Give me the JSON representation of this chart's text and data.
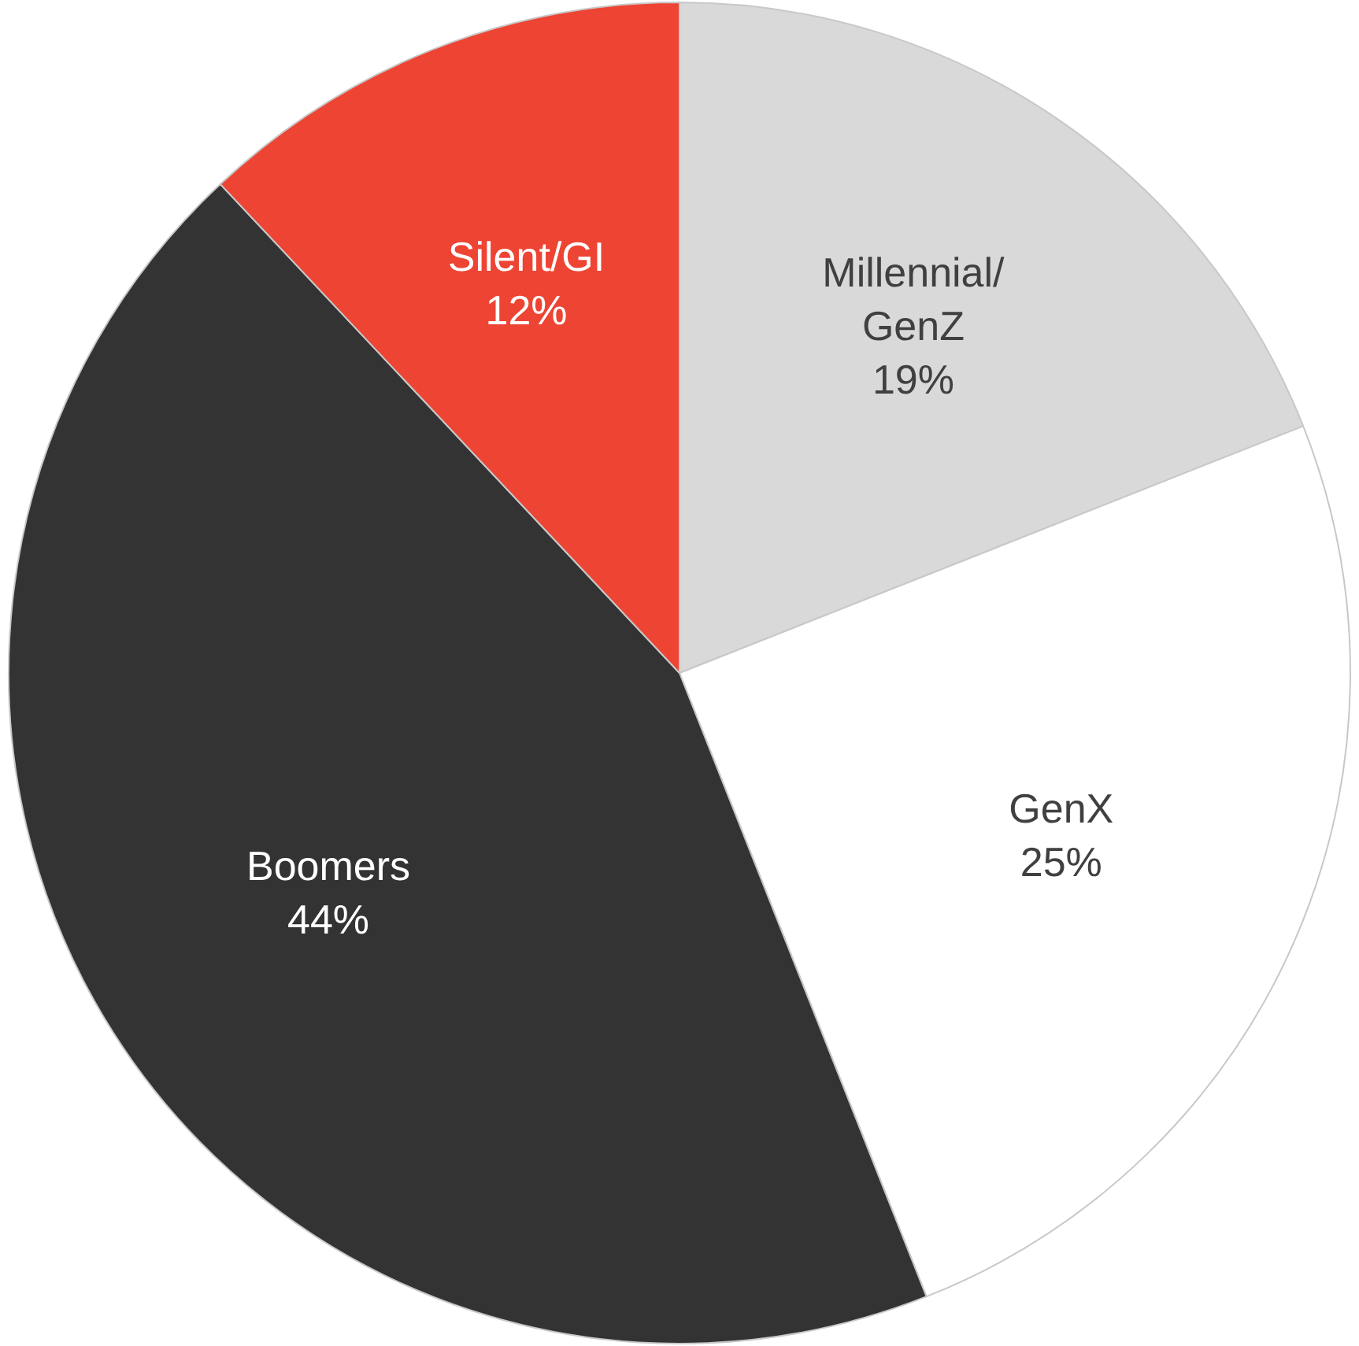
{
  "chart_data": {
    "type": "pie",
    "categories": [
      "Millennial/GenZ",
      "GenX",
      "Boomers",
      "Silent/GI"
    ],
    "values": [
      19,
      25,
      44,
      12
    ],
    "colors": [
      "#d9d9d9",
      "#ffffff",
      "#333333",
      "#ee4433"
    ],
    "value_labels": [
      "19%",
      "25%",
      "44%",
      "12%"
    ],
    "legend": false
  }
}
